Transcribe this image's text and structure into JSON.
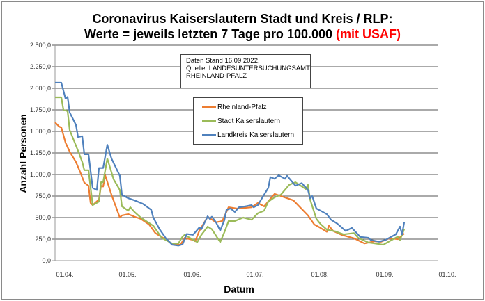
{
  "chart_data": {
    "type": "line",
    "title_line1": "Coronavirus Kaiserslautern Stadt und Kreis / RLP:",
    "title_line2": "Werte = jeweils letzten 7 Tage pro 100.000 ",
    "title_highlight": "(mit USAF)",
    "title_highlight_color": "#ff0000",
    "xlabel": "Datum",
    "ylabel": "Anzahl Personen",
    "ylim": [
      0,
      2500
    ],
    "yticks": [
      "0,0",
      "250,0",
      "500,0",
      "750,0",
      "1.000,0",
      "1.250,0",
      "1.500,0",
      "1.750,0",
      "2.000,0",
      "2.250,0",
      "2.500,0"
    ],
    "xticks": [
      "01.04.",
      "01.05.",
      "01.06.",
      "01.07.",
      "01.08.",
      "01.09.",
      "01.10."
    ],
    "grid": "horizontal",
    "annotation": [
      "Daten Stand 16.09.2022,",
      "Quelle: LANDESUNTERSUCHUNGSAMT",
      "RHEINLAND-PFALZ"
    ],
    "legend": "center",
    "series": [
      {
        "name": "Rheinland-Pfalz",
        "color": "#ed7d31",
        "points": [
          [
            "01.04.",
            1605
          ],
          [
            "03.04.",
            1555
          ],
          [
            "04.04.",
            1545
          ],
          [
            "06.04.",
            1370
          ],
          [
            "08.04.",
            1265
          ],
          [
            "11.04.",
            1145
          ],
          [
            "13.04.",
            1030
          ],
          [
            "15.04.",
            905
          ],
          [
            "17.04.",
            870
          ],
          [
            "18.04.",
            670
          ],
          [
            "19.04.",
            645
          ],
          [
            "22.04.",
            710
          ],
          [
            "23.04.",
            870
          ],
          [
            "24.04.",
            860
          ],
          [
            "25.04.",
            990
          ],
          [
            "28.04.",
            765
          ],
          [
            "02.05.",
            500
          ],
          [
            "03.05.",
            525
          ],
          [
            "06.05.",
            540
          ],
          [
            "09.05.",
            510
          ],
          [
            "12.05.",
            485
          ],
          [
            "16.05.",
            420
          ],
          [
            "19.05.",
            320
          ],
          [
            "23.05.",
            260
          ],
          [
            "27.05.",
            195
          ],
          [
            "31.05.",
            185
          ],
          [
            "02.06.",
            265
          ],
          [
            "06.06.",
            240
          ],
          [
            "07.06.",
            225
          ],
          [
            "09.06.",
            345
          ],
          [
            "13.06.",
            510
          ],
          [
            "17.06.",
            445
          ],
          [
            "20.06.",
            460
          ],
          [
            "23.06.",
            620
          ],
          [
            "27.06.",
            605
          ],
          [
            "04.07.",
            620
          ],
          [
            "07.07.",
            670
          ],
          [
            "10.07.",
            630
          ],
          [
            "15.07.",
            775
          ],
          [
            "18.07.",
            750
          ],
          [
            "21.07.",
            725
          ],
          [
            "24.07.",
            700
          ],
          [
            "31.07.",
            525
          ],
          [
            "03.08.",
            420
          ],
          [
            "06.08.",
            380
          ],
          [
            "09.08.",
            335
          ],
          [
            "10.08.",
            405
          ],
          [
            "12.08.",
            345
          ],
          [
            "16.08.",
            300
          ],
          [
            "22.08.",
            260
          ],
          [
            "27.08.",
            200
          ],
          [
            "01.09.",
            225
          ],
          [
            "04.09.",
            220
          ],
          [
            "08.09.",
            260
          ],
          [
            "12.09.",
            250
          ],
          [
            "15.09.",
            315
          ]
        ]
      },
      {
        "name": "Stadt Kaiserslautern",
        "color": "#9bbb59",
        "points": [
          [
            "01.04.",
            1895
          ],
          [
            "04.04.",
            1895
          ],
          [
            "05.04.",
            1750
          ],
          [
            "07.04.",
            1735
          ],
          [
            "08.04.",
            1515
          ],
          [
            "12.04.",
            1275
          ],
          [
            "14.04.",
            1145
          ],
          [
            "15.04.",
            1050
          ],
          [
            "17.04.",
            1050
          ],
          [
            "19.04.",
            645
          ],
          [
            "22.04.",
            685
          ],
          [
            "23.04.",
            910
          ],
          [
            "24.04.",
            910
          ],
          [
            "26.04.",
            1185
          ],
          [
            "29.04.",
            945
          ],
          [
            "02.05.",
            820
          ],
          [
            "03.05.",
            630
          ],
          [
            "06.05.",
            580
          ],
          [
            "07.05.",
            620
          ],
          [
            "09.05.",
            565
          ],
          [
            "12.05.",
            500
          ],
          [
            "18.05.",
            405
          ],
          [
            "22.05.",
            265
          ],
          [
            "27.05.",
            200
          ],
          [
            "30.05.",
            200
          ],
          [
            "01.06.",
            280
          ],
          [
            "02.06.",
            300
          ],
          [
            "08.06.",
            215
          ],
          [
            "10.06.",
            300
          ],
          [
            "13.06.",
            395
          ],
          [
            "15.06.",
            365
          ],
          [
            "19.06.",
            215
          ],
          [
            "21.06.",
            330
          ],
          [
            "23.06.",
            460
          ],
          [
            "26.06.",
            460
          ],
          [
            "30.06.",
            500
          ],
          [
            "04.07.",
            475
          ],
          [
            "07.07.",
            550
          ],
          [
            "10.07.",
            580
          ],
          [
            "12.07.",
            685
          ],
          [
            "15.07.",
            735
          ],
          [
            "18.07.",
            765
          ],
          [
            "22.07.",
            880
          ],
          [
            "25.07.",
            910
          ],
          [
            "30.07.",
            830
          ],
          [
            "31.07.",
            880
          ],
          [
            "01.08.",
            710
          ],
          [
            "04.08.",
            485
          ],
          [
            "06.08.",
            425
          ],
          [
            "09.08.",
            360
          ],
          [
            "13.08.",
            340
          ],
          [
            "17.08.",
            305
          ],
          [
            "22.08.",
            320
          ],
          [
            "24.08.",
            265
          ],
          [
            "29.08.",
            210
          ],
          [
            "01.09.",
            200
          ],
          [
            "05.09.",
            185
          ],
          [
            "09.09.",
            240
          ],
          [
            "12.09.",
            280
          ],
          [
            "13.09.",
            240
          ],
          [
            "15.09.",
            365
          ]
        ]
      },
      {
        "name": "Landkreis Kaiserslautern",
        "color": "#4f81bd",
        "points": [
          [
            "01.04.",
            2065
          ],
          [
            "04.04.",
            2065
          ],
          [
            "06.04.",
            1880
          ],
          [
            "07.04.",
            1900
          ],
          [
            "08.04.",
            1720
          ],
          [
            "11.04.",
            1575
          ],
          [
            "12.04.",
            1435
          ],
          [
            "14.04.",
            1445
          ],
          [
            "15.04.",
            1235
          ],
          [
            "17.04.",
            1235
          ],
          [
            "19.04.",
            845
          ],
          [
            "21.04.",
            820
          ],
          [
            "22.04.",
            1075
          ],
          [
            "24.04.",
            1075
          ],
          [
            "26.04.",
            1345
          ],
          [
            "28.04.",
            1185
          ],
          [
            "02.05.",
            985
          ],
          [
            "03.05.",
            765
          ],
          [
            "06.05.",
            725
          ],
          [
            "09.05.",
            700
          ],
          [
            "13.05.",
            660
          ],
          [
            "17.05.",
            590
          ],
          [
            "18.05.",
            500
          ],
          [
            "21.05.",
            365
          ],
          [
            "24.05.",
            260
          ],
          [
            "27.05.",
            185
          ],
          [
            "30.05.",
            175
          ],
          [
            "01.06.",
            190
          ],
          [
            "03.06.",
            310
          ],
          [
            "06.06.",
            300
          ],
          [
            "09.06.",
            385
          ],
          [
            "10.06.",
            365
          ],
          [
            "13.06.",
            515
          ],
          [
            "14.06.",
            485
          ],
          [
            "15.06.",
            510
          ],
          [
            "17.06.",
            445
          ],
          [
            "19.06.",
            350
          ],
          [
            "21.06.",
            470
          ],
          [
            "22.06.",
            590
          ],
          [
            "24.06.",
            605
          ],
          [
            "26.06.",
            565
          ],
          [
            "28.06.",
            620
          ],
          [
            "01.07.",
            630
          ],
          [
            "04.07.",
            645
          ],
          [
            "05.07.",
            620
          ],
          [
            "07.07.",
            645
          ],
          [
            "12.07.",
            845
          ],
          [
            "13.07.",
            970
          ],
          [
            "15.07.",
            950
          ],
          [
            "17.07.",
            990
          ],
          [
            "20.07.",
            950
          ],
          [
            "21.07.",
            985
          ],
          [
            "25.07.",
            870
          ],
          [
            "28.07.",
            900
          ],
          [
            "31.07.",
            820
          ],
          [
            "01.08.",
            725
          ],
          [
            "02.08.",
            750
          ],
          [
            "04.08.",
            605
          ],
          [
            "06.08.",
            580
          ],
          [
            "09.08.",
            540
          ],
          [
            "11.08.",
            475
          ],
          [
            "14.08.",
            430
          ],
          [
            "18.08.",
            345
          ],
          [
            "21.08.",
            380
          ],
          [
            "25.08.",
            275
          ],
          [
            "29.08.",
            265
          ],
          [
            "30.08.",
            240
          ],
          [
            "03.09.",
            220
          ],
          [
            "06.09.",
            240
          ],
          [
            "09.09.",
            280
          ],
          [
            "11.09.",
            305
          ],
          [
            "13.09.",
            395
          ],
          [
            "14.09.",
            305
          ],
          [
            "15.09.",
            445
          ]
        ]
      }
    ]
  }
}
